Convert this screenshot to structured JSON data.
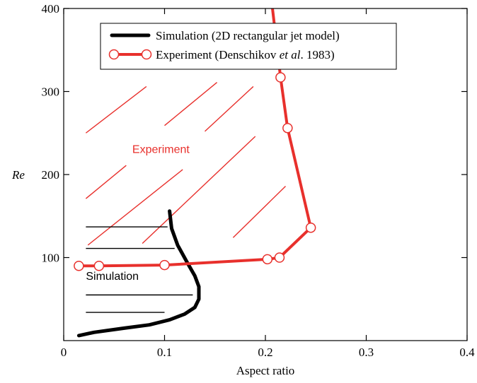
{
  "chart_data": {
    "type": "line",
    "title": "",
    "xlabel": "Aspect ratio",
    "ylabel": "Re",
    "xlim": [
      0,
      0.4
    ],
    "ylim": [
      0,
      400
    ],
    "x_ticks": [
      0,
      0.1,
      0.2,
      0.3,
      0.4
    ],
    "x_tick_labels": [
      "0",
      "0.1",
      "0.2",
      "0.3",
      "0.4"
    ],
    "y_ticks": [
      100,
      200,
      300,
      400
    ],
    "y_tick_labels": [
      "100",
      "200",
      "300",
      "400"
    ],
    "grid": false,
    "legend_position": "top",
    "series": [
      {
        "name": "Simulation (2D rectangular jet model)",
        "color": "#000000",
        "markers": false,
        "x": [
          0.015,
          0.03,
          0.06,
          0.085,
          0.105,
          0.12,
          0.13,
          0.134,
          0.134,
          0.13,
          0.122,
          0.113,
          0.107,
          0.105
        ],
        "y": [
          6,
          10,
          15,
          19,
          25,
          32,
          40,
          50,
          65,
          78,
          95,
          115,
          135,
          156
        ]
      },
      {
        "name": "Experiment (Denschikov et al. 1983)",
        "legend_plain": "Experiment (Denschikov ",
        "legend_italic": "et al",
        "legend_suffix": ". 1983)",
        "color": "#e8302c",
        "markers": true,
        "x": [
          0.015,
          0.035,
          0.1,
          0.202,
          0.214,
          0.245,
          0.222,
          0.215,
          0.207
        ],
        "y": [
          90,
          90,
          91,
          98,
          100,
          136,
          256,
          317,
          400
        ]
      }
    ],
    "region_labels": [
      {
        "text": "Experiment",
        "color": "#e8302c",
        "x": 0.068,
        "y": 226
      },
      {
        "text": "Simulation",
        "color": "#000000",
        "x": 0.022,
        "y": 73
      }
    ],
    "hatch": {
      "experiment_lines": [
        [
          0.022,
          250,
          0.082,
          306
        ],
        [
          0.1,
          259,
          0.152,
          311
        ],
        [
          0.14,
          252,
          0.188,
          306
        ],
        [
          0.022,
          171,
          0.062,
          211
        ],
        [
          0.024,
          115,
          0.118,
          206
        ],
        [
          0.078,
          117,
          0.19,
          246
        ],
        [
          0.168,
          124,
          0.22,
          186
        ],
        [
          0.022,
          325,
          0.022,
          325
        ]
      ],
      "simulation_lines": [
        [
          0.022,
          137,
          0.103,
          137
        ],
        [
          0.022,
          111,
          0.11,
          111
        ],
        [
          0.022,
          55,
          0.128,
          55
        ],
        [
          0.022,
          34,
          0.1,
          34
        ]
      ]
    }
  }
}
